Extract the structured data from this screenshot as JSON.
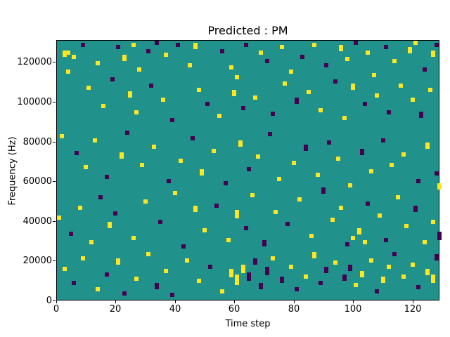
{
  "chart_data": {
    "type": "heatmap",
    "title": "Predicted : PM",
    "xlabel": "Time step",
    "ylabel": "Frequency (Hz)",
    "x_ticks": [
      0,
      20,
      40,
      60,
      80,
      100,
      120
    ],
    "y_ticks": [
      0,
      20000,
      40000,
      60000,
      80000,
      100000,
      120000
    ],
    "x_range": [
      0,
      129
    ],
    "y_range": [
      0,
      131072
    ],
    "grid_cols": 129,
    "grid_rows": 128,
    "legend": "none",
    "grid": "off",
    "colors": {
      "background_value": "#21918c",
      "purple": "#440154",
      "yellow": "#fde725",
      "axes": "#000000",
      "figure_background": "#ffffff"
    },
    "cells_format": "[col, row_from_bottom, run_length, color_index] where color 0=purple, 1=yellow",
    "cells": [
      [
        2,
        120,
        3,
        1
      ],
      [
        3,
        121,
        2,
        1
      ],
      [
        5,
        119,
        2,
        1
      ],
      [
        8,
        125,
        2,
        0
      ],
      [
        13,
        116,
        2,
        1
      ],
      [
        20,
        124,
        2,
        0
      ],
      [
        22,
        118,
        3,
        1
      ],
      [
        25,
        125,
        2,
        1
      ],
      [
        27,
        113,
        2,
        1
      ],
      [
        30,
        122,
        2,
        0
      ],
      [
        33,
        126,
        2,
        0
      ],
      [
        36,
        120,
        2,
        1
      ],
      [
        40,
        125,
        2,
        0
      ],
      [
        44,
        115,
        2,
        1
      ],
      [
        46,
        124,
        3,
        1
      ],
      [
        55,
        122,
        2,
        0
      ],
      [
        58,
        114,
        2,
        1
      ],
      [
        60,
        109,
        2,
        1
      ],
      [
        63,
        125,
        2,
        0
      ],
      [
        68,
        121,
        2,
        1
      ],
      [
        70,
        117,
        2,
        0
      ],
      [
        75,
        124,
        2,
        1
      ],
      [
        78,
        112,
        2,
        1
      ],
      [
        82,
        119,
        2,
        0
      ],
      [
        86,
        125,
        2,
        1
      ],
      [
        90,
        115,
        2,
        0
      ],
      [
        95,
        123,
        3,
        1
      ],
      [
        97,
        118,
        2,
        1
      ],
      [
        100,
        126,
        2,
        0
      ],
      [
        104,
        121,
        2,
        1
      ],
      [
        106,
        110,
        2,
        1
      ],
      [
        110,
        124,
        2,
        0
      ],
      [
        113,
        117,
        2,
        1
      ],
      [
        118,
        122,
        3,
        1
      ],
      [
        120,
        126,
        2,
        1
      ],
      [
        123,
        113,
        2,
        0
      ],
      [
        126,
        120,
        3,
        1
      ],
      [
        127,
        125,
        2,
        0
      ],
      [
        3,
        112,
        2,
        1
      ],
      [
        10,
        104,
        2,
        1
      ],
      [
        15,
        95,
        2,
        1
      ],
      [
        18,
        108,
        2,
        0
      ],
      [
        24,
        100,
        3,
        1
      ],
      [
        26,
        92,
        2,
        1
      ],
      [
        31,
        105,
        2,
        0
      ],
      [
        35,
        98,
        2,
        1
      ],
      [
        38,
        88,
        2,
        0
      ],
      [
        47,
        103,
        2,
        1
      ],
      [
        50,
        96,
        2,
        0
      ],
      [
        54,
        90,
        2,
        1
      ],
      [
        59,
        101,
        3,
        1
      ],
      [
        62,
        94,
        2,
        0
      ],
      [
        66,
        99,
        2,
        1
      ],
      [
        72,
        91,
        2,
        0
      ],
      [
        76,
        106,
        2,
        1
      ],
      [
        80,
        97,
        3,
        0
      ],
      [
        84,
        102,
        2,
        1
      ],
      [
        88,
        93,
        2,
        1
      ],
      [
        93,
        107,
        2,
        0
      ],
      [
        96,
        89,
        2,
        1
      ],
      [
        99,
        104,
        3,
        1
      ],
      [
        103,
        96,
        2,
        0
      ],
      [
        107,
        100,
        2,
        1
      ],
      [
        111,
        92,
        2,
        0
      ],
      [
        115,
        105,
        2,
        1
      ],
      [
        119,
        98,
        2,
        1
      ],
      [
        122,
        90,
        3,
        0
      ],
      [
        125,
        103,
        2,
        1
      ],
      [
        1,
        80,
        2,
        1
      ],
      [
        6,
        72,
        2,
        0
      ],
      [
        9,
        65,
        2,
        1
      ],
      [
        12,
        78,
        2,
        1
      ],
      [
        16,
        60,
        2,
        0
      ],
      [
        21,
        70,
        3,
        1
      ],
      [
        23,
        82,
        2,
        0
      ],
      [
        28,
        66,
        2,
        1
      ],
      [
        32,
        75,
        2,
        1
      ],
      [
        37,
        58,
        2,
        0
      ],
      [
        41,
        68,
        2,
        1
      ],
      [
        45,
        79,
        2,
        0
      ],
      [
        48,
        62,
        3,
        1
      ],
      [
        52,
        73,
        2,
        1
      ],
      [
        56,
        57,
        2,
        0
      ],
      [
        61,
        76,
        3,
        1
      ],
      [
        64,
        64,
        2,
        0
      ],
      [
        67,
        70,
        2,
        1
      ],
      [
        71,
        81,
        2,
        0
      ],
      [
        74,
        59,
        2,
        1
      ],
      [
        79,
        67,
        2,
        1
      ],
      [
        83,
        74,
        3,
        0
      ],
      [
        87,
        61,
        2,
        1
      ],
      [
        91,
        77,
        2,
        0
      ],
      [
        94,
        69,
        2,
        1
      ],
      [
        98,
        56,
        2,
        1
      ],
      [
        102,
        72,
        3,
        0
      ],
      [
        105,
        63,
        2,
        1
      ],
      [
        109,
        78,
        2,
        0
      ],
      [
        112,
        66,
        2,
        1
      ],
      [
        116,
        71,
        2,
        1
      ],
      [
        121,
        58,
        2,
        0
      ],
      [
        124,
        75,
        3,
        1
      ],
      [
        127,
        62,
        2,
        0
      ],
      [
        128,
        55,
        3,
        1
      ],
      [
        0,
        40,
        2,
        1
      ],
      [
        4,
        32,
        2,
        0
      ],
      [
        7,
        45,
        2,
        1
      ],
      [
        11,
        28,
        2,
        1
      ],
      [
        14,
        50,
        2,
        0
      ],
      [
        17,
        36,
        3,
        1
      ],
      [
        19,
        42,
        2,
        0
      ],
      [
        25,
        30,
        2,
        1
      ],
      [
        29,
        48,
        2,
        1
      ],
      [
        34,
        38,
        2,
        0
      ],
      [
        39,
        52,
        2,
        1
      ],
      [
        42,
        26,
        2,
        0
      ],
      [
        46,
        44,
        3,
        1
      ],
      [
        49,
        34,
        2,
        1
      ],
      [
        53,
        46,
        2,
        0
      ],
      [
        57,
        29,
        2,
        1
      ],
      [
        60,
        41,
        4,
        1
      ],
      [
        63,
        35,
        2,
        0
      ],
      [
        65,
        51,
        2,
        1
      ],
      [
        69,
        27,
        3,
        0
      ],
      [
        73,
        43,
        2,
        1
      ],
      [
        77,
        37,
        2,
        0
      ],
      [
        81,
        49,
        2,
        1
      ],
      [
        85,
        31,
        2,
        1
      ],
      [
        89,
        53,
        3,
        0
      ],
      [
        92,
        39,
        2,
        1
      ],
      [
        95,
        45,
        2,
        1
      ],
      [
        97,
        27,
        2,
        0
      ],
      [
        99,
        30,
        2,
        1
      ],
      [
        101,
        33,
        3,
        1
      ],
      [
        103,
        28,
        2,
        1
      ],
      [
        104,
        47,
        2,
        0
      ],
      [
        108,
        41,
        2,
        1
      ],
      [
        110,
        29,
        2,
        0
      ],
      [
        114,
        50,
        2,
        1
      ],
      [
        117,
        36,
        2,
        1
      ],
      [
        120,
        44,
        3,
        0
      ],
      [
        123,
        28,
        2,
        1
      ],
      [
        126,
        38,
        2,
        1
      ],
      [
        128,
        30,
        4,
        0
      ],
      [
        2,
        15,
        2,
        1
      ],
      [
        5,
        8,
        2,
        0
      ],
      [
        8,
        20,
        2,
        1
      ],
      [
        13,
        5,
        2,
        1
      ],
      [
        16,
        12,
        2,
        0
      ],
      [
        20,
        18,
        3,
        1
      ],
      [
        22,
        3,
        2,
        0
      ],
      [
        26,
        10,
        2,
        1
      ],
      [
        30,
        22,
        2,
        1
      ],
      [
        33,
        6,
        3,
        0
      ],
      [
        36,
        14,
        2,
        1
      ],
      [
        38,
        2,
        2,
        0
      ],
      [
        43,
        19,
        2,
        1
      ],
      [
        47,
        9,
        2,
        1
      ],
      [
        51,
        16,
        2,
        0
      ],
      [
        55,
        4,
        2,
        1
      ],
      [
        58,
        12,
        4,
        1
      ],
      [
        60,
        8,
        5,
        1
      ],
      [
        62,
        14,
        4,
        1
      ],
      [
        64,
        10,
        4,
        0
      ],
      [
        66,
        18,
        3,
        0
      ],
      [
        68,
        6,
        3,
        0
      ],
      [
        70,
        13,
        4,
        0
      ],
      [
        72,
        20,
        2,
        1
      ],
      [
        75,
        9,
        3,
        0
      ],
      [
        78,
        16,
        2,
        1
      ],
      [
        80,
        5,
        2,
        0
      ],
      [
        83,
        11,
        2,
        1
      ],
      [
        86,
        21,
        3,
        1
      ],
      [
        88,
        8,
        2,
        0
      ],
      [
        90,
        14,
        3,
        0
      ],
      [
        93,
        18,
        2,
        1
      ],
      [
        96,
        10,
        3,
        0
      ],
      [
        98,
        15,
        3,
        0
      ],
      [
        100,
        7,
        2,
        1
      ],
      [
        102,
        12,
        3,
        1
      ],
      [
        105,
        19,
        2,
        1
      ],
      [
        107,
        4,
        2,
        0
      ],
      [
        109,
        9,
        3,
        1
      ],
      [
        111,
        16,
        2,
        1
      ],
      [
        113,
        22,
        2,
        0
      ],
      [
        116,
        11,
        2,
        1
      ],
      [
        119,
        17,
        2,
        1
      ],
      [
        121,
        6,
        2,
        0
      ],
      [
        124,
        13,
        3,
        1
      ],
      [
        126,
        9,
        4,
        1
      ],
      [
        127,
        20,
        3,
        0
      ]
    ]
  }
}
